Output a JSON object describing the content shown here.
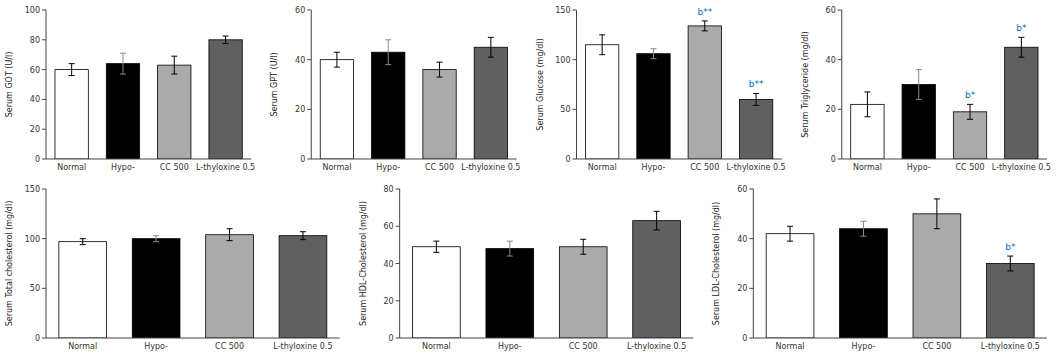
{
  "chart_data": [
    {
      "type": "bar",
      "ylabel": "Serum GOT (U/l)",
      "categories": [
        "Normal",
        "Hypo-",
        "CC 500",
        "L-thyloxine 0.5"
      ],
      "values": [
        60,
        64,
        63,
        80
      ],
      "errors": [
        4,
        7,
        6,
        2.5
      ],
      "colors": [
        "white",
        "black",
        "#AAAAAA",
        "#606060"
      ],
      "ylim": [
        0,
        100
      ],
      "yticks": [
        0,
        20,
        40,
        60,
        80,
        100
      ],
      "annotations": []
    },
    {
      "type": "bar",
      "ylabel": "Serum GPT (U/l)",
      "categories": [
        "Normal",
        "Hypo-",
        "CC 500",
        "L-thyloxine 0.5"
      ],
      "values": [
        40,
        43,
        36,
        45
      ],
      "errors": [
        3,
        5,
        3,
        4
      ],
      "colors": [
        "white",
        "black",
        "#AAAAAA",
        "#606060"
      ],
      "ylim": [
        0,
        60
      ],
      "yticks": [
        0,
        20,
        40,
        60
      ],
      "annotations": []
    },
    {
      "type": "bar",
      "ylabel": "Serum Glucose (mg/dl)",
      "categories": [
        "Normal",
        "Hypo-",
        "CC 500",
        "L-thyloxine 0.5"
      ],
      "values": [
        115,
        106,
        134,
        60
      ],
      "errors": [
        10,
        5,
        5,
        6
      ],
      "colors": [
        "white",
        "black",
        "#AAAAAA",
        "#606060"
      ],
      "ylim": [
        0,
        150
      ],
      "yticks": [
        0,
        50,
        100,
        150
      ],
      "annotations": [
        {
          "bar": 2,
          "text": "b**",
          "color": "#0070C0"
        },
        {
          "bar": 3,
          "text": "b**",
          "color": "#0070C0"
        }
      ]
    },
    {
      "type": "bar",
      "ylabel": "Serum Triglyceride (mg/dl)",
      "categories": [
        "Normal",
        "Hypo-",
        "CC 500",
        "L-thyloxine 0.5"
      ],
      "values": [
        22,
        30,
        19,
        45
      ],
      "errors": [
        5,
        6,
        3,
        4
      ],
      "colors": [
        "white",
        "black",
        "#AAAAAA",
        "#606060"
      ],
      "ylim": [
        0,
        60
      ],
      "yticks": [
        0,
        20,
        40,
        60
      ],
      "annotations": [
        {
          "bar": 2,
          "text": "b*",
          "color": "#0070C0"
        },
        {
          "bar": 3,
          "text": "b*",
          "color": "#0070C0"
        }
      ]
    },
    {
      "type": "bar",
      "ylabel": "Serum Total cholesterol (mg/dl)",
      "categories": [
        "Normal",
        "Hypo-",
        "CC 500",
        "L-thyloxine 0.5"
      ],
      "values": [
        97,
        100,
        104,
        103
      ],
      "errors": [
        3,
        3,
        6,
        4
      ],
      "colors": [
        "white",
        "black",
        "#AAAAAA",
        "#606060"
      ],
      "ylim": [
        0,
        150
      ],
      "yticks": [
        0,
        50,
        100,
        150
      ],
      "annotations": []
    },
    {
      "type": "bar",
      "ylabel": "Serum HDL-Cholesterol (mg/dl)",
      "categories": [
        "Normal",
        "Hypo-",
        "CC 500",
        "L-thyloxine 0.5"
      ],
      "values": [
        49,
        48,
        49,
        63
      ],
      "errors": [
        3,
        4,
        4,
        5
      ],
      "colors": [
        "white",
        "black",
        "#AAAAAA",
        "#606060"
      ],
      "ylim": [
        0,
        80
      ],
      "yticks": [
        0,
        20,
        40,
        60,
        80
      ],
      "annotations": []
    },
    {
      "type": "bar",
      "ylabel": "Serum LDL-Cholesterol (mg/dl)",
      "categories": [
        "Normal",
        "Hypo-",
        "CC 500",
        "L-thyloxine 0.5"
      ],
      "values": [
        42,
        44,
        50,
        30
      ],
      "errors": [
        3,
        3,
        6,
        3
      ],
      "colors": [
        "white",
        "black",
        "#AAAAAA",
        "#606060"
      ],
      "ylim": [
        0,
        60
      ],
      "yticks": [
        0,
        20,
        40,
        60
      ],
      "annotations": [
        {
          "bar": 3,
          "text": "b*",
          "color": "#0070C0"
        }
      ]
    }
  ]
}
